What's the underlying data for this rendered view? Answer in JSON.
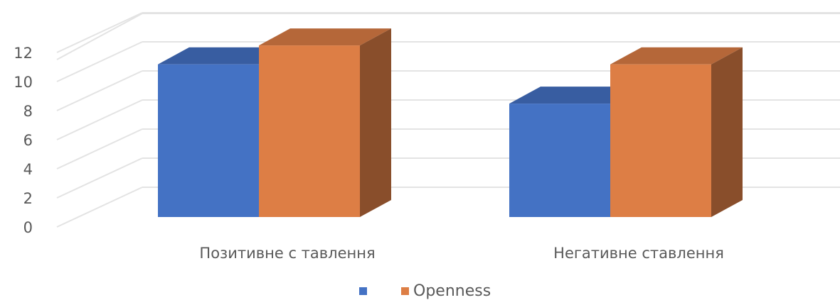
{
  "chart_data": {
    "type": "bar",
    "categories": [
      "Позитивне с тавлення",
      "Негативне ставлення"
    ],
    "series": [
      {
        "name": "",
        "values": [
          10.5,
          7.8
        ],
        "color": "#4472C4"
      },
      {
        "name": "Openness",
        "values": [
          11.8,
          10.5
        ],
        "color": "#DD7E45"
      }
    ],
    "y_ticks": [
      "0",
      "2",
      "4",
      "6",
      "8",
      "10",
      "12"
    ],
    "ylim": [
      0,
      12
    ],
    "grid": true,
    "legend": "bottom-center",
    "style": "3d-clustered-column"
  }
}
